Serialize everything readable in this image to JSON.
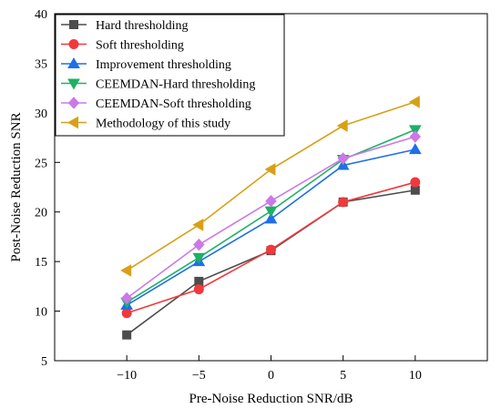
{
  "chart_data": {
    "type": "line",
    "xlabel": "Pre-Noise Reduction SNR/dB",
    "ylabel": "Post-Noise Reduction SNR",
    "x": [
      -10,
      -5,
      0,
      5,
      10
    ],
    "xticks": [
      -10,
      -5,
      0,
      5,
      10
    ],
    "xtick_labels": [
      "−10",
      "−5",
      "0",
      "5",
      "10"
    ],
    "xlim": [
      -15,
      15
    ],
    "yticks": [
      5,
      10,
      15,
      20,
      25,
      30,
      35,
      40
    ],
    "ylim": [
      5,
      40
    ],
    "grid": false,
    "legend_position": "top-left",
    "series": [
      {
        "name": "Hard thresholding",
        "values": [
          7.6,
          13.0,
          16.1,
          21.0,
          22.2
        ],
        "color": "#4d4d4d",
        "marker": "square"
      },
      {
        "name": "Soft thresholding",
        "values": [
          9.8,
          12.2,
          16.2,
          21.0,
          23.0
        ],
        "color": "#f0393c",
        "marker": "circle"
      },
      {
        "name": "Improvement thresholding",
        "values": [
          10.6,
          15.0,
          19.3,
          24.7,
          26.3
        ],
        "color": "#1f6fe8",
        "marker": "triangle-up"
      },
      {
        "name": "CEEMDAN-Hard thresholding",
        "values": [
          10.9,
          15.4,
          20.1,
          25.3,
          28.3
        ],
        "color": "#1db165",
        "marker": "triangle-down"
      },
      {
        "name": "CEEMDAN-Soft thresholding",
        "values": [
          11.3,
          16.7,
          21.1,
          25.4,
          27.6
        ],
        "color": "#cc78e8",
        "marker": "diamond"
      },
      {
        "name": "Methodology of this study",
        "values": [
          14.1,
          18.7,
          24.3,
          28.7,
          31.1
        ],
        "color": "#d9a016",
        "marker": "triangle-left"
      }
    ]
  }
}
